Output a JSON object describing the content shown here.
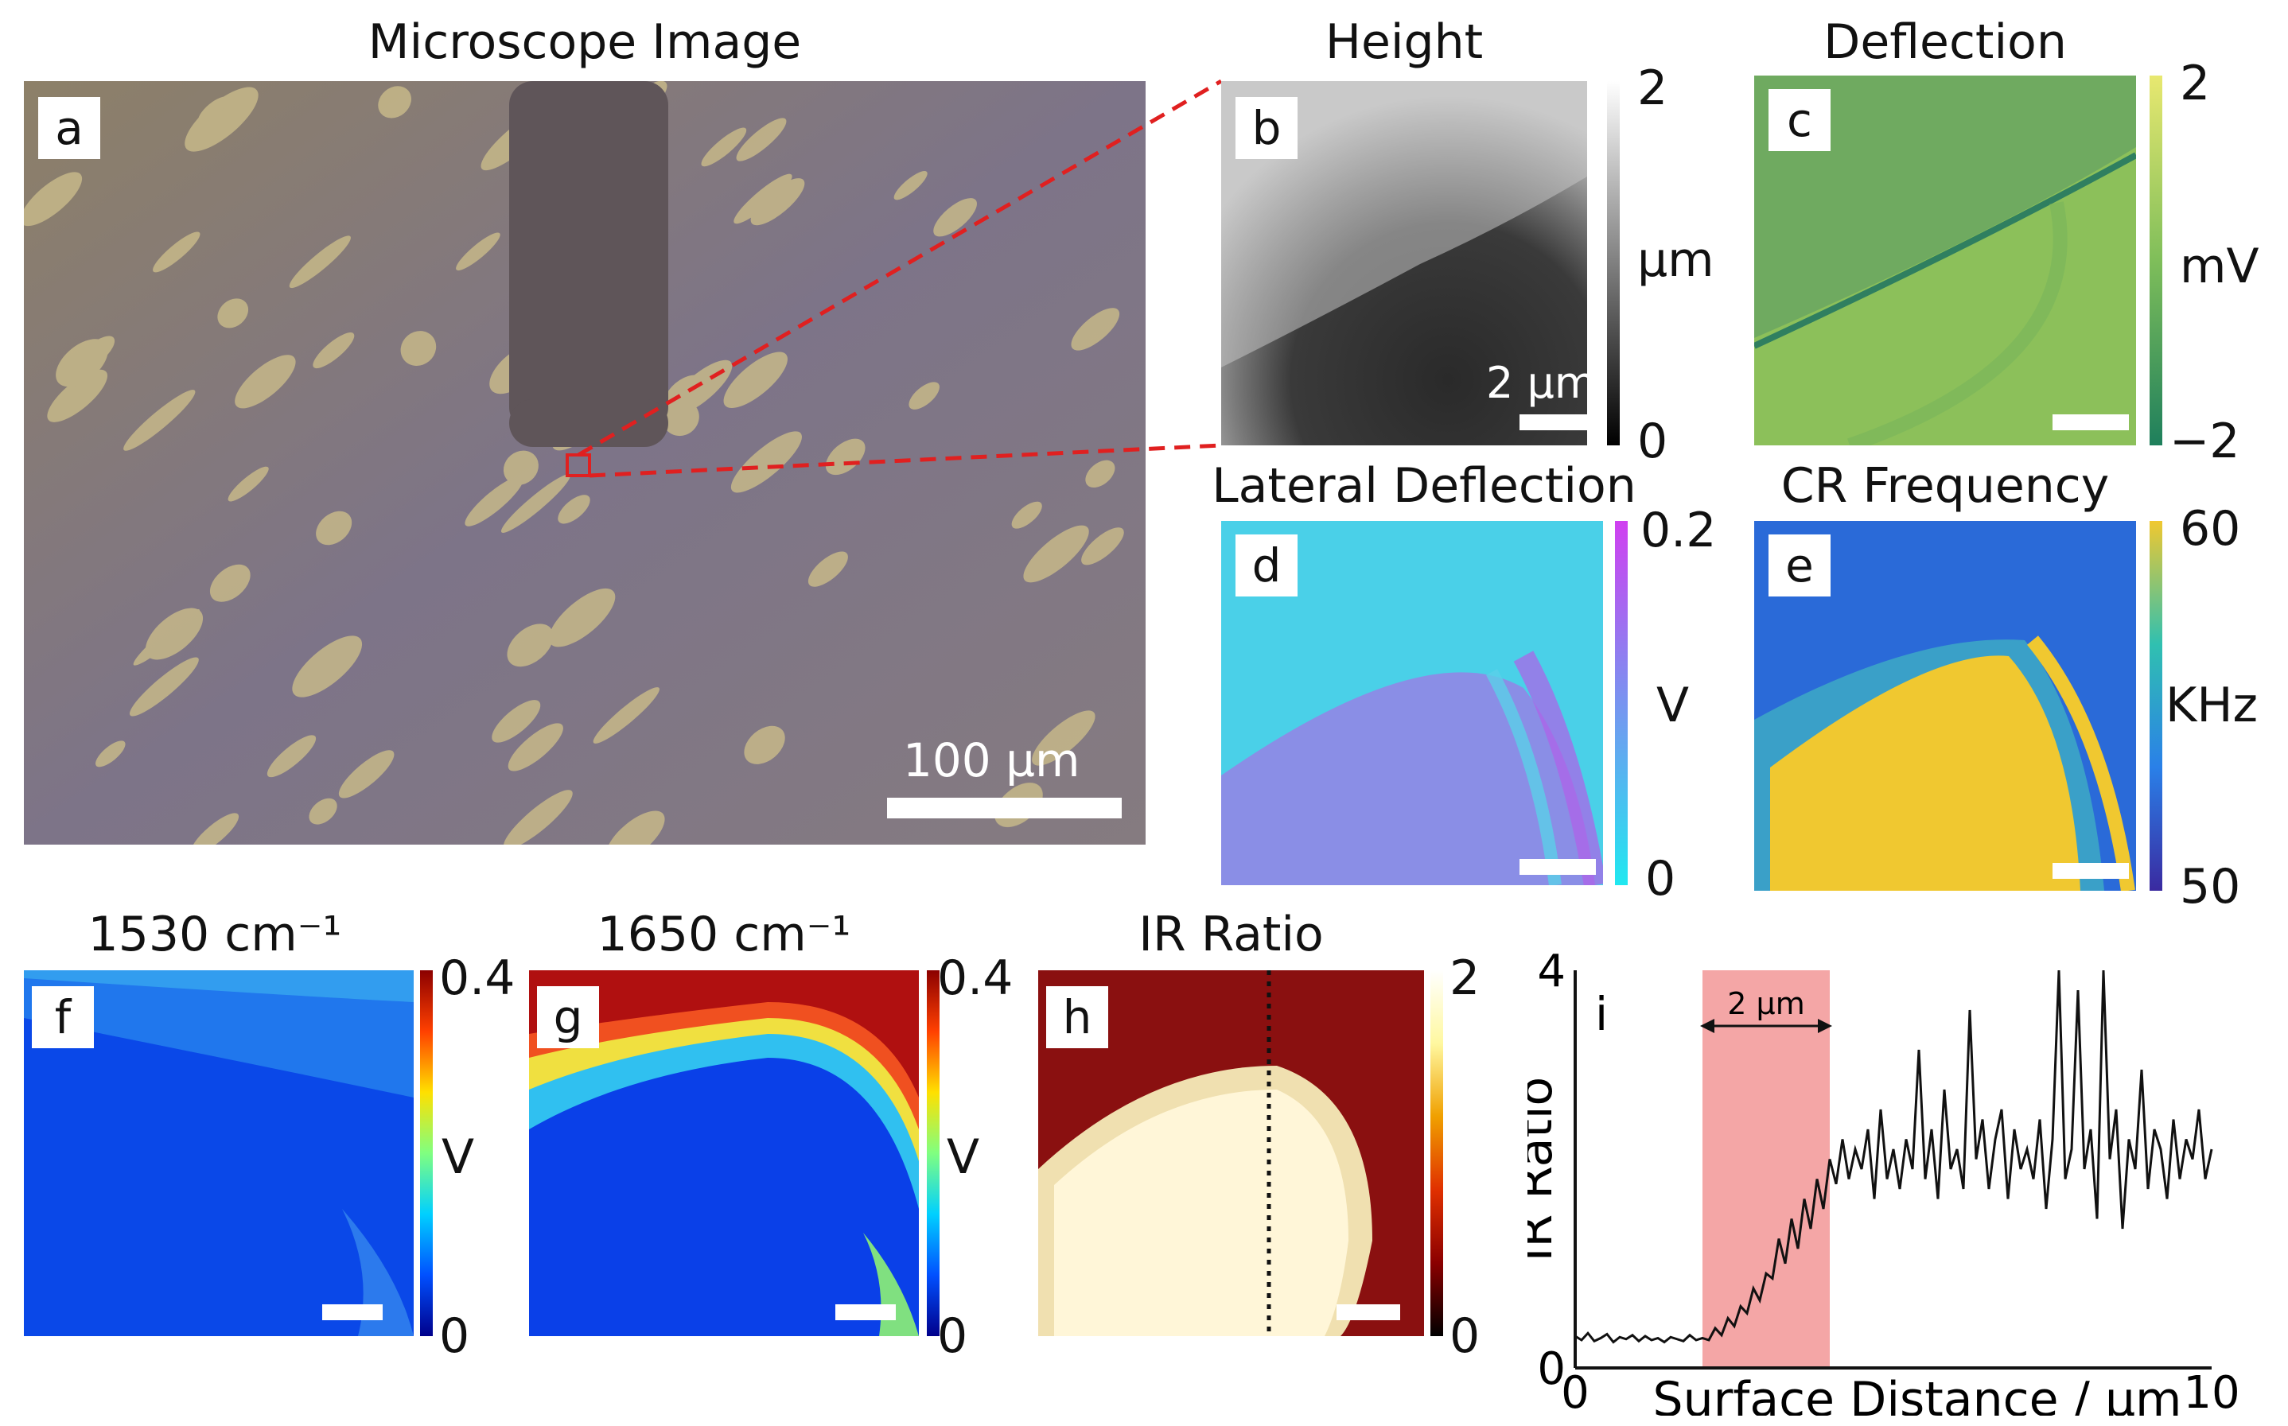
{
  "panels": {
    "a": {
      "letter": "a",
      "title": "Microscope Image",
      "scale": "100 µm"
    },
    "b": {
      "letter": "b",
      "title": "Height",
      "scale": "2 µm",
      "cmax": "2",
      "cunit": "µm",
      "cmin": "0"
    },
    "c": {
      "letter": "c",
      "title": "Deflection",
      "cmax": "2",
      "cunit": "mV",
      "cmin": "−2"
    },
    "d": {
      "letter": "d",
      "title": "Lateral Deflection",
      "cmax": "0.2",
      "cunit": "V",
      "cmin": "0"
    },
    "e": {
      "letter": "e",
      "title": "CR Frequency",
      "cmax": "60",
      "cunit": "KHz",
      "cmin": "50"
    },
    "f": {
      "letter": "f",
      "title": "1530 cm⁻¹",
      "cmax": "0.4",
      "cunit": "V",
      "cmin": "0"
    },
    "g": {
      "letter": "g",
      "title": "1650 cm⁻¹",
      "cmax": "0.4",
      "cunit": "V",
      "cmin": "0"
    },
    "h": {
      "letter": "h",
      "title": "IR Ratio",
      "cmax": "2",
      "cmin": "0"
    },
    "i": {
      "letter": "i",
      "annotation": "2 µm"
    }
  },
  "colors": {
    "zoom_line": "#e02020",
    "highlight": "#f4a6a6",
    "trace": "#111111"
  },
  "chart_data": {
    "type": "line",
    "title": "",
    "xlabel": "Surface Distance / µm",
    "ylabel": "IR Ratio",
    "xlim": [
      0,
      10
    ],
    "ylim": [
      0,
      4
    ],
    "xticks": [
      "0",
      "10"
    ],
    "yticks": [
      "0",
      "4"
    ],
    "highlight_region": [
      2,
      4
    ],
    "x": [
      0,
      0.1,
      0.2,
      0.3,
      0.4,
      0.5,
      0.6,
      0.7,
      0.8,
      0.9,
      1.0,
      1.1,
      1.2,
      1.3,
      1.4,
      1.5,
      1.6,
      1.7,
      1.8,
      1.9,
      2.0,
      2.1,
      2.2,
      2.3,
      2.4,
      2.5,
      2.6,
      2.7,
      2.8,
      2.9,
      3.0,
      3.1,
      3.2,
      3.3,
      3.4,
      3.5,
      3.6,
      3.7,
      3.8,
      3.9,
      4.0,
      4.1,
      4.2,
      4.3,
      4.4,
      4.5,
      4.6,
      4.7,
      4.8,
      4.9,
      5.0,
      5.1,
      5.2,
      5.3,
      5.4,
      5.5,
      5.6,
      5.7,
      5.8,
      5.9,
      6.0,
      6.1,
      6.2,
      6.3,
      6.4,
      6.5,
      6.6,
      6.7,
      6.8,
      6.9,
      7.0,
      7.1,
      7.2,
      7.3,
      7.4,
      7.5,
      7.6,
      7.7,
      7.8,
      7.9,
      8.0,
      8.1,
      8.2,
      8.3,
      8.4,
      8.5,
      8.6,
      8.7,
      8.8,
      8.9,
      9.0,
      9.1,
      9.2,
      9.3,
      9.4,
      9.5,
      9.6,
      9.7,
      9.8,
      9.9,
      10.0
    ],
    "values": [
      0.32,
      0.28,
      0.35,
      0.27,
      0.3,
      0.34,
      0.26,
      0.31,
      0.29,
      0.33,
      0.27,
      0.32,
      0.28,
      0.3,
      0.26,
      0.31,
      0.29,
      0.27,
      0.33,
      0.28,
      0.3,
      0.28,
      0.4,
      0.33,
      0.5,
      0.42,
      0.62,
      0.55,
      0.8,
      0.68,
      0.95,
      0.9,
      1.3,
      1.05,
      1.5,
      1.2,
      1.7,
      1.4,
      1.9,
      1.6,
      2.1,
      1.85,
      2.3,
      1.9,
      2.2,
      2.0,
      2.4,
      1.7,
      2.6,
      1.9,
      2.2,
      1.8,
      2.3,
      2.0,
      3.2,
      1.9,
      2.4,
      1.7,
      2.8,
      2.0,
      2.2,
      1.8,
      3.6,
      2.1,
      2.5,
      1.8,
      2.3,
      2.6,
      1.7,
      2.4,
      2.0,
      2.2,
      1.9,
      2.5,
      1.6,
      2.3,
      4.0,
      1.9,
      2.2,
      3.8,
      2.0,
      2.4,
      1.5,
      4.0,
      2.1,
      2.6,
      1.4,
      2.3,
      2.0,
      3.0,
      1.8,
      2.4,
      2.2,
      1.7,
      2.5,
      1.9,
      2.3,
      2.1,
      2.6,
      1.9,
      2.2
    ]
  }
}
